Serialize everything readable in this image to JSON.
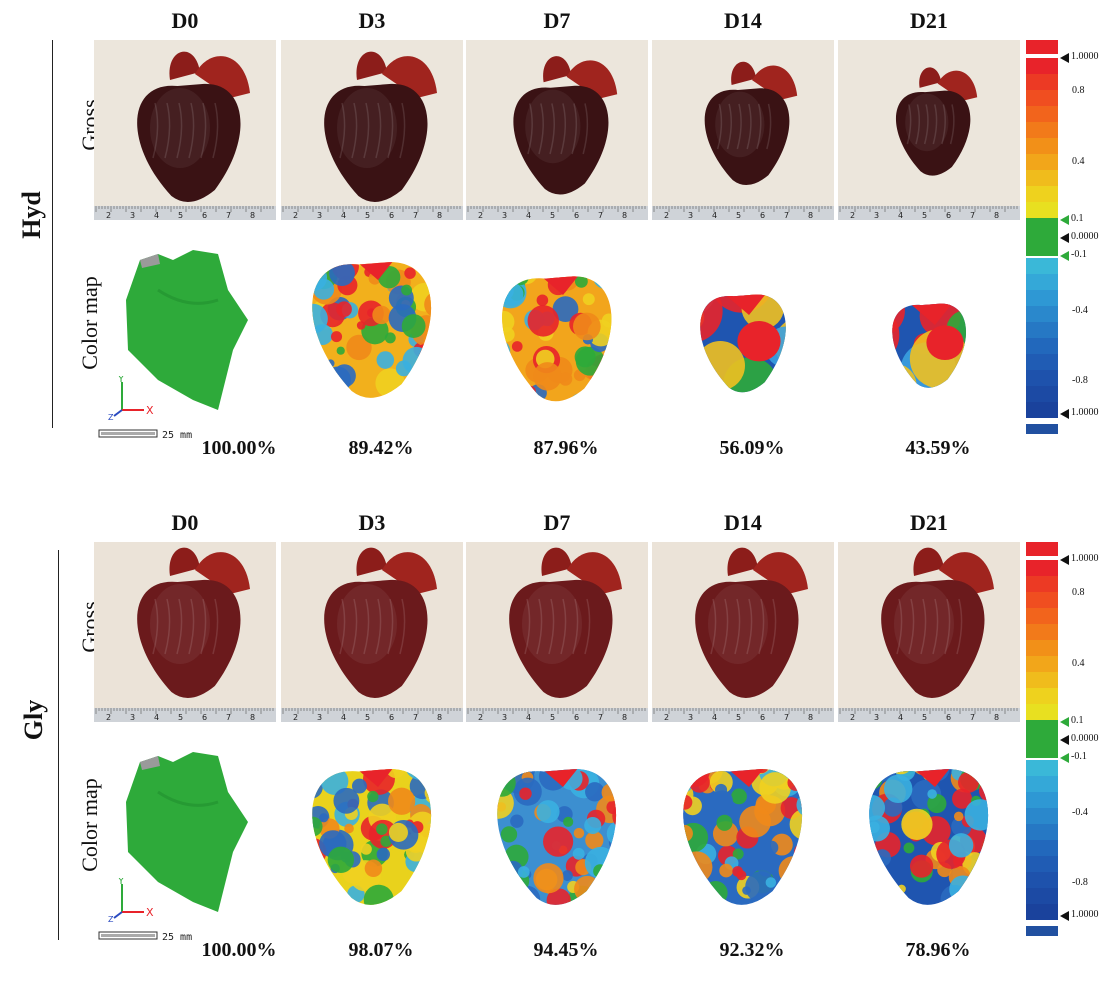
{
  "days": [
    "D0",
    "D3",
    "D7",
    "D14",
    "D21"
  ],
  "groups": [
    {
      "name": "Hyd",
      "row_labels": {
        "gross": "Gross",
        "color_map": "Color map"
      },
      "percentages": [
        "100.00%",
        "89.42%",
        "87.96%",
        "56.09%",
        "43.59%"
      ]
    },
    {
      "name": "Gly",
      "row_labels": {
        "gross": "Gross",
        "color_map": "Color map"
      },
      "percentages": [
        "100.00%",
        "98.07%",
        "94.45%",
        "92.32%",
        "78.96%"
      ]
    }
  ],
  "scale_bar": {
    "text": "25 mm"
  },
  "axis_glyph": {
    "x": "X",
    "y": "Y",
    "z": "Z"
  },
  "ruler_ticks": [
    "2",
    "3",
    "4",
    "5",
    "6",
    "7",
    "8"
  ],
  "colorbar": {
    "labels": [
      "1.0000",
      "0.8",
      "0.4",
      "0.1",
      "0.0000",
      "-0.1",
      "-0.4",
      "-0.8",
      "1.0000"
    ],
    "colors": {
      "max": "#e8232a",
      "min": "#2150a0",
      "zero": "#2eaa3a"
    }
  }
}
